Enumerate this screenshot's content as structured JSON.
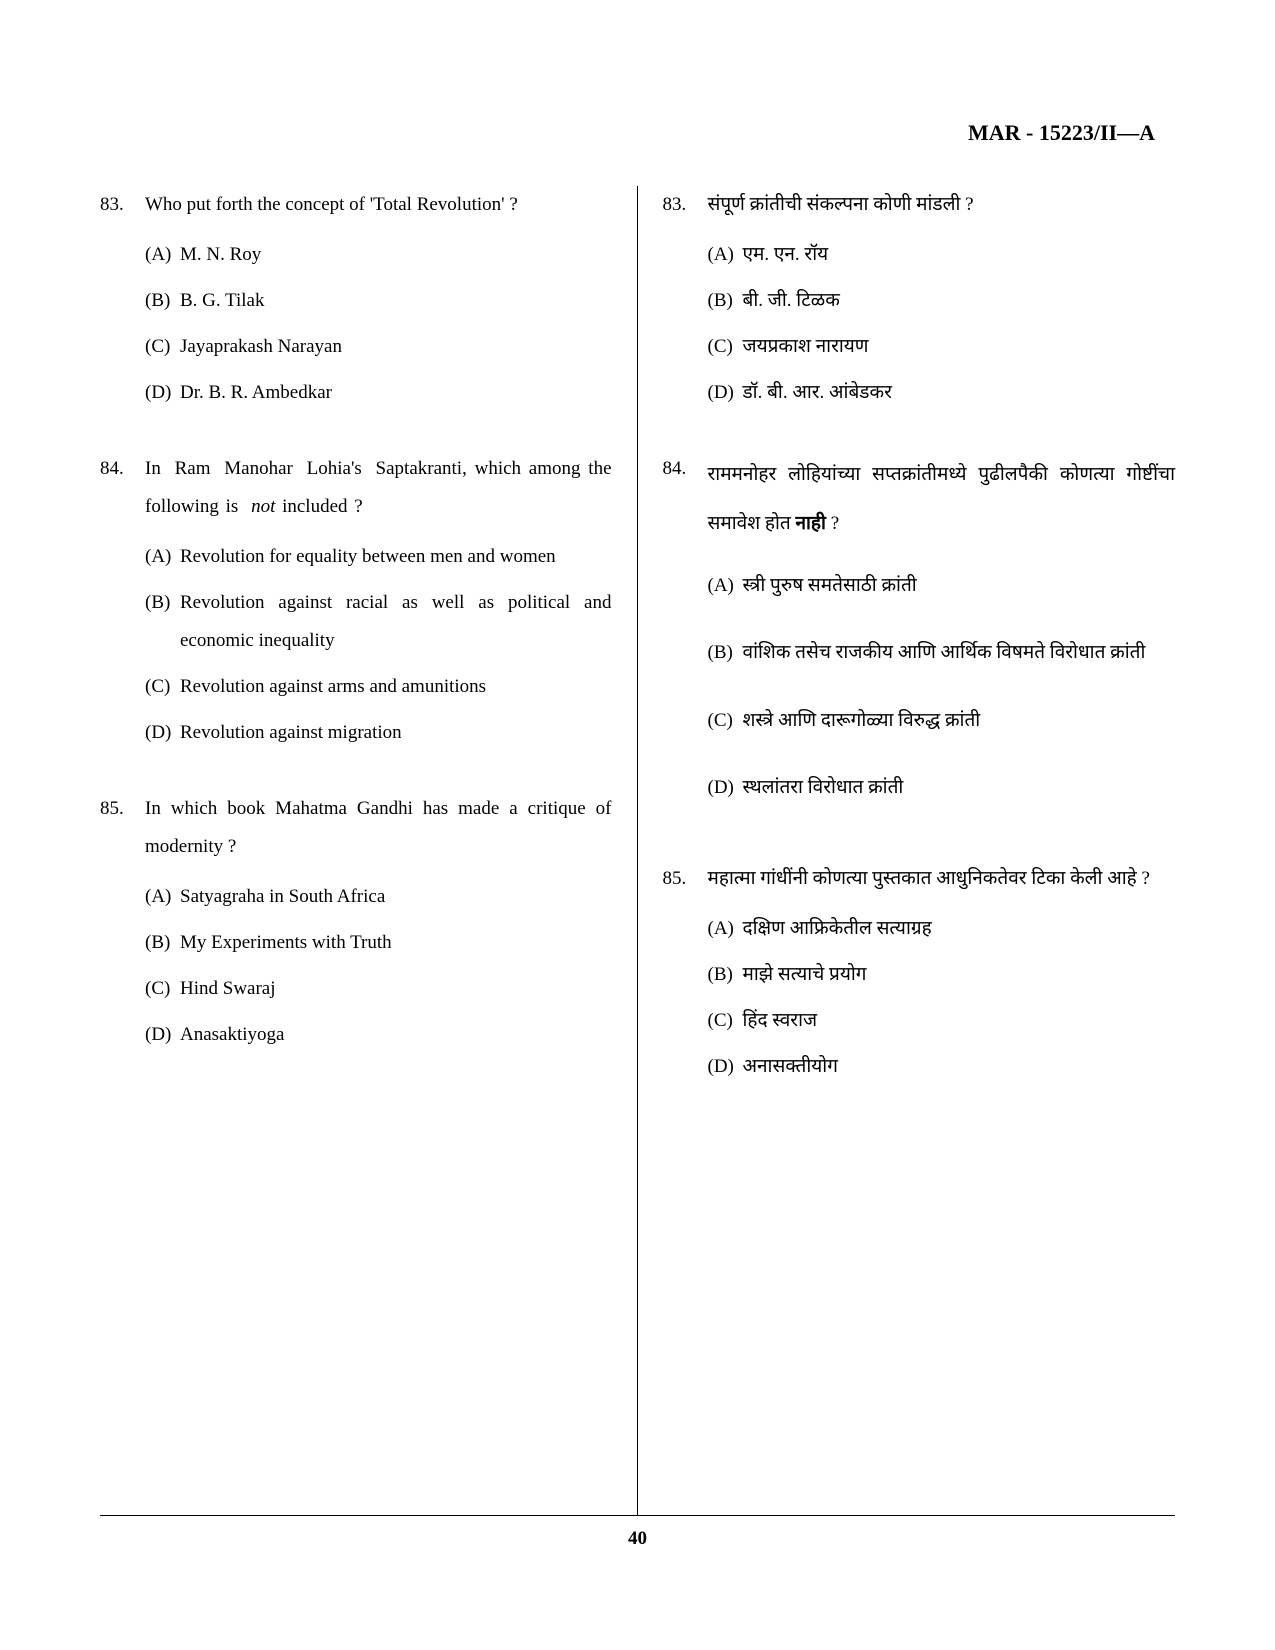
{
  "header": "MAR - 15223/II—A",
  "page_number": "40",
  "columns": {
    "left": {
      "questions": [
        {
          "number": "83.",
          "text_html": "Who put forth the concept of 'Total Revolution' ?",
          "options": [
            {
              "label": "(A)",
              "text": "M. N. Roy"
            },
            {
              "label": "(B)",
              "text": "B. G. Tilak"
            },
            {
              "label": "(C)",
              "text": "Jayaprakash Narayan"
            },
            {
              "label": "(D)",
              "text": "Dr. B. R. Ambedkar"
            }
          ]
        },
        {
          "number": "84.",
          "text_line1": "In   Ram   Manohar   Lohia's",
          "text_line2": "Saptakranti, which among the following is",
          "text_italic": "not",
          "text_after": " included ?",
          "options": [
            {
              "label": "(A)",
              "text": "Revolution for equality between men and women"
            },
            {
              "label": "(B)",
              "text": "Revolution against racial as well as political and economic inequality"
            },
            {
              "label": "(C)",
              "text": "Revolution against arms and amunitions"
            },
            {
              "label": "(D)",
              "text": "Revolution against migration"
            }
          ]
        },
        {
          "number": "85.",
          "text": "In which book Mahatma Gandhi has made a critique of modernity ?",
          "options": [
            {
              "label": "(A)",
              "text": "Satyagraha in South Africa"
            },
            {
              "label": "(B)",
              "text": "My Experiments with Truth"
            },
            {
              "label": "(C)",
              "text": "Hind Swaraj"
            },
            {
              "label": "(D)",
              "text": "Anasaktiyoga"
            }
          ]
        }
      ]
    },
    "right": {
      "questions": [
        {
          "number": "83.",
          "text": "संपूर्ण क्रांतीची संकल्पना कोणी मांडली ?",
          "options": [
            {
              "label": "(A)",
              "text": "एम. एन. रॉय"
            },
            {
              "label": "(B)",
              "text": "बी. जी. टिळक"
            },
            {
              "label": "(C)",
              "text": "जयप्रकाश नारायण"
            },
            {
              "label": "(D)",
              "text": "डॉ. बी. आर. आंबेडकर"
            }
          ]
        },
        {
          "number": "84.",
          "text_before": "राममनोहर लोहियांच्या सप्तक्रांतीमध्ये पुढीलपैकी कोणत्या गोष्टींचा समावेश होत ",
          "text_bold": "नाही",
          "text_after": " ?",
          "options": [
            {
              "label": "(A)",
              "text": "स्त्री पुरुष समतेसाठी क्रांती"
            },
            {
              "label": "(B)",
              "text": "वांशिक तसेच राजकीय आणि आर्थिक विषमते विरोधात क्रांती"
            },
            {
              "label": "(C)",
              "text": "शस्त्रे आणि दारूगोळ्या विरुद्ध क्रांती"
            },
            {
              "label": "(D)",
              "text": "स्थलांतरा विरोधात क्रांती"
            }
          ]
        },
        {
          "number": "85.",
          "text": "महात्मा गांधींनी कोणत्या पुस्तकात आधुनिकतेवर टिका केली आहे ?",
          "options": [
            {
              "label": "(A)",
              "text": "दक्षिण आफ्रिकेतील सत्याग्रह"
            },
            {
              "label": "(B)",
              "text": "माझे सत्याचे प्रयोग"
            },
            {
              "label": "(C)",
              "text": "हिंद स्वराज"
            },
            {
              "label": "(D)",
              "text": "अनासक्तीयोग"
            }
          ]
        }
      ]
    }
  }
}
